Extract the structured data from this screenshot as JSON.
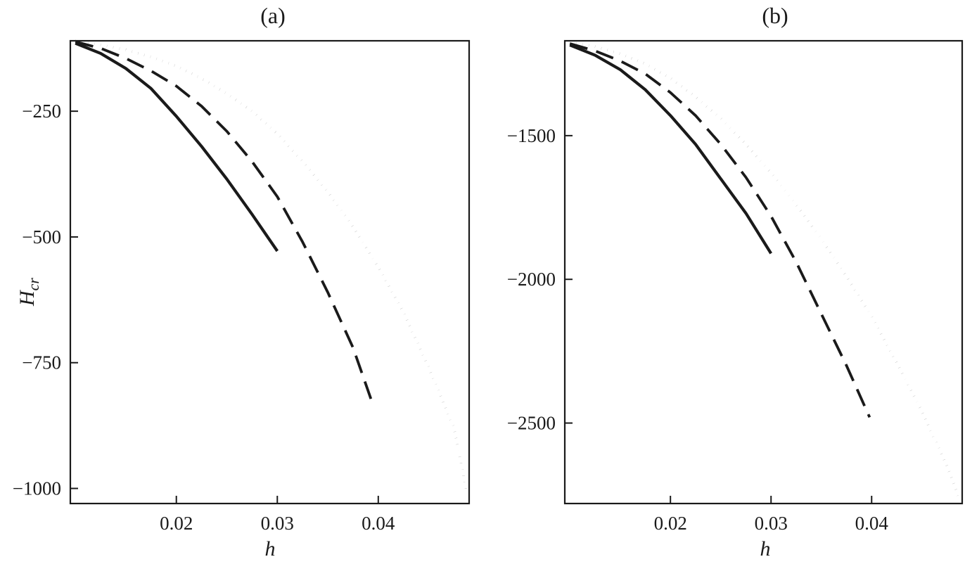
{
  "colors": {
    "ink": "#1a1a1a",
    "background": "#ffffff"
  },
  "chart_data": [
    {
      "type": "line",
      "title": "(a)",
      "xlabel": "h",
      "ylabel": "H",
      "ylabel_sub": "cr",
      "xlim": [
        0.0095,
        0.049
      ],
      "ylim": [
        -1030,
        -110
      ],
      "xticks": [
        0.02,
        0.03,
        0.04
      ],
      "xtick_labels": [
        "0.02",
        "0.03",
        "0.04"
      ],
      "yticks": [
        -250,
        -500,
        -750,
        -1000
      ],
      "ytick_labels": [
        "−250",
        "−500",
        "−750",
        "−1000"
      ],
      "grid": false,
      "series": [
        {
          "style": "solid",
          "x": [
            0.01,
            0.0125,
            0.015,
            0.0175,
            0.02,
            0.0225,
            0.025,
            0.0275,
            0.03
          ],
          "y": [
            -115,
            -135,
            -165,
            -205,
            -260,
            -320,
            -385,
            -455,
            -528
          ]
        },
        {
          "style": "dashed",
          "x": [
            0.01,
            0.0125,
            0.015,
            0.0175,
            0.02,
            0.0225,
            0.025,
            0.0275,
            0.03,
            0.0325,
            0.035,
            0.0375,
            0.0395
          ],
          "y": [
            -112,
            -125,
            -145,
            -170,
            -200,
            -240,
            -290,
            -350,
            -420,
            -510,
            -610,
            -720,
            -835
          ]
        },
        {
          "style": "dotted",
          "x": [
            0.01,
            0.0125,
            0.015,
            0.0175,
            0.02,
            0.0225,
            0.025,
            0.0275,
            0.03,
            0.0325,
            0.035,
            0.0375,
            0.04,
            0.0425,
            0.045,
            0.0475,
            0.0488
          ],
          "y": [
            -110,
            -118,
            -128,
            -142,
            -160,
            -185,
            -215,
            -250,
            -295,
            -350,
            -410,
            -480,
            -560,
            -650,
            -760,
            -880,
            -1010
          ]
        }
      ]
    },
    {
      "type": "line",
      "title": "(b)",
      "xlabel": "h",
      "xlim": [
        0.0095,
        0.049
      ],
      "ylim": [
        -2780,
        -1170
      ],
      "xticks": [
        0.02,
        0.03,
        0.04
      ],
      "xtick_labels": [
        "0.02",
        "0.03",
        "0.04"
      ],
      "yticks": [
        -1500,
        -2000,
        -2500
      ],
      "ytick_labels": [
        "−1500",
        "−2000",
        "−2500"
      ],
      "grid": false,
      "series": [
        {
          "style": "solid",
          "x": [
            0.01,
            0.0125,
            0.015,
            0.0175,
            0.02,
            0.0225,
            0.025,
            0.0275,
            0.03
          ],
          "y": [
            -1185,
            -1220,
            -1270,
            -1340,
            -1430,
            -1530,
            -1650,
            -1770,
            -1910
          ]
        },
        {
          "style": "dashed",
          "x": [
            0.01,
            0.0125,
            0.015,
            0.0175,
            0.02,
            0.0225,
            0.025,
            0.0275,
            0.03,
            0.0325,
            0.035,
            0.0375,
            0.0398
          ],
          "y": [
            -1180,
            -1205,
            -1240,
            -1285,
            -1350,
            -1430,
            -1530,
            -1645,
            -1780,
            -1940,
            -2120,
            -2300,
            -2480
          ]
        },
        {
          "style": "dotted",
          "x": [
            0.01,
            0.0125,
            0.015,
            0.0175,
            0.02,
            0.0225,
            0.025,
            0.0275,
            0.03,
            0.0325,
            0.035,
            0.0375,
            0.04,
            0.0425,
            0.045,
            0.0475,
            0.0488
          ],
          "y": [
            -1175,
            -1190,
            -1215,
            -1250,
            -1300,
            -1365,
            -1440,
            -1530,
            -1630,
            -1740,
            -1860,
            -1990,
            -2130,
            -2290,
            -2460,
            -2650,
            -2770
          ]
        }
      ]
    }
  ]
}
